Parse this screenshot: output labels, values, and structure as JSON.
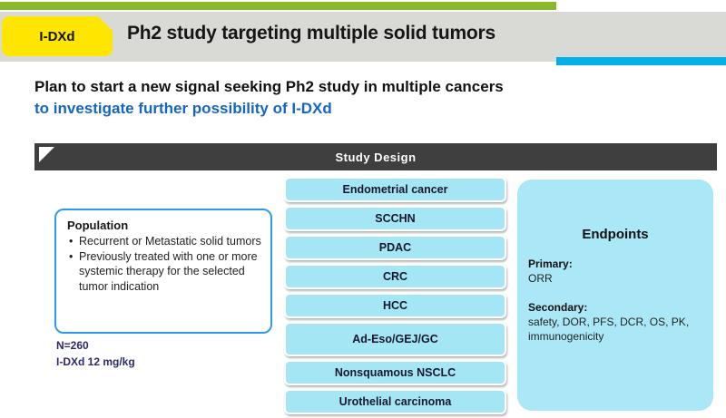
{
  "header": {
    "badge": "I-DXd",
    "title": "Ph2 study targeting multiple solid tumors"
  },
  "headline": {
    "line1": "Plan to start a new signal seeking Ph2 study in multiple cancers",
    "line2": "to investigate further possibility of I-DXd"
  },
  "study_design": {
    "title": "Study Design",
    "population": {
      "title": "Population",
      "bullets": [
        "Recurrent or Metastatic solid tumors",
        "Previously treated with one or more systemic therapy for the selected tumor indication"
      ],
      "n_label": "N=260",
      "dose_label": "I-DXd 12 mg/kg"
    },
    "tumor_types": [
      "Endometrial cancer",
      "SCCHN",
      "PDAC",
      "CRC",
      "HCC",
      "Ad-Eso/GEJ/GC",
      "Nonsquamous NSCLC",
      "Urothelial carcinoma"
    ],
    "endpoints": {
      "title": "Endpoints",
      "primary_label": "Primary:",
      "primary_value": "ORR",
      "secondary_label": "Secondary:",
      "secondary_value": "safety, DOR, PFS, DCR, OS, PK, immunogenicity"
    }
  },
  "colors": {
    "accent_green": "#8cb92a",
    "accent_blue": "#00aee8",
    "badge_yellow": "#ffe600",
    "header_gray": "#d9d9d6",
    "bar_dark": "#3f3f3f",
    "box_cyan": "#a5e6f5",
    "headline_blue": "#1665c1",
    "navy_text": "#2b2a6b",
    "population_border": "#2e9bf0"
  }
}
